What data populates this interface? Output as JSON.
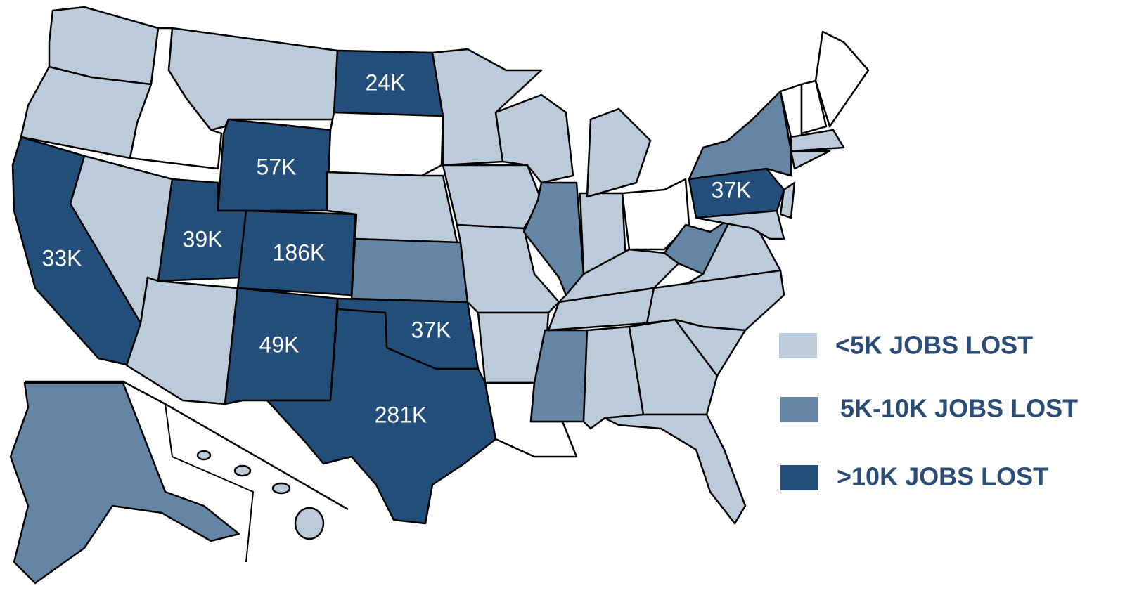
{
  "map": {
    "labels": [
      "24K",
      "57K",
      "37K",
      "39K",
      "186K",
      "33K",
      "37K",
      "49K",
      "281K"
    ],
    "legend": [
      {
        "label": "<5K JOBS LOST",
        "color": "#bccbd9"
      },
      {
        "label": "5K-10K JOBS LOST",
        "color": "#6585a5"
      },
      {
        "label": ">10K JOBS LOST",
        "color": "#234e7a"
      }
    ]
  }
}
